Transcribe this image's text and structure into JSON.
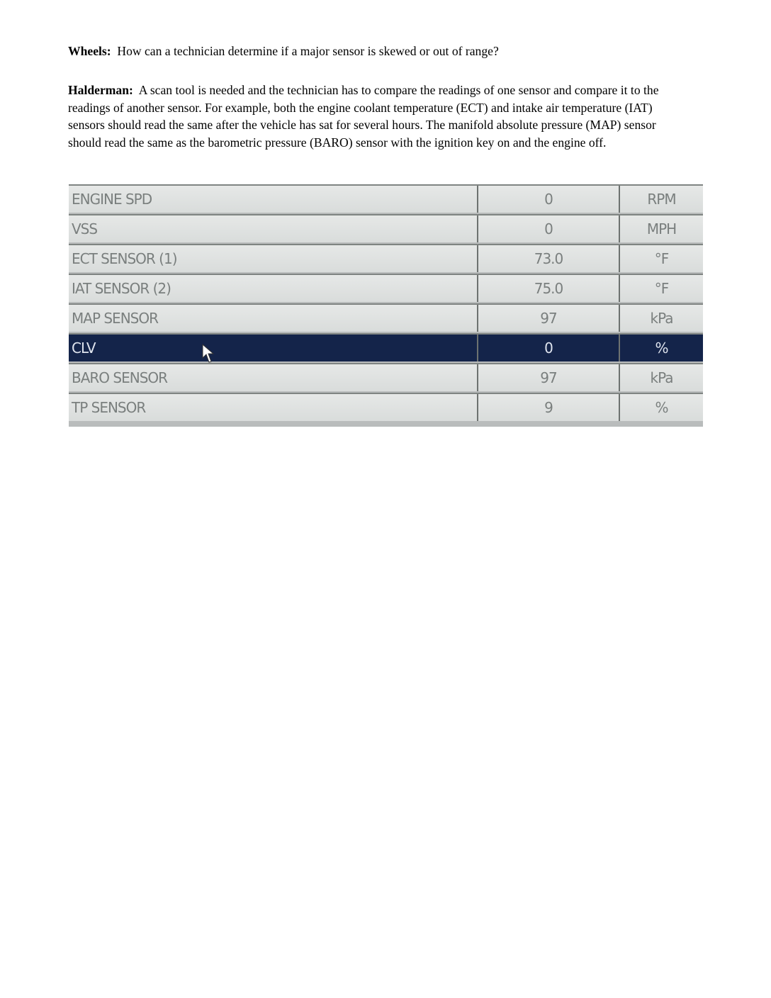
{
  "question": {
    "speaker": "Wheels:",
    "text": "How can a technician determine if a major sensor is skewed or out of range?"
  },
  "answer": {
    "speaker": "Halderman:",
    "text": "A scan tool is needed and the technician has to compare the readings of one sensor and compare it to the readings of another sensor.  For example, both the engine coolant temperature (ECT) and intake air temperature (IAT) sensors should read the same after the vehicle has sat for several hours. The manifold absolute pressure (MAP) sensor should read the same as the barometric pressure (BARO) sensor with the ignition key on and the engine off."
  },
  "scan_table": {
    "selected_row": "CLV",
    "rows": [
      {
        "name": "ENGINE SPD",
        "value": "0",
        "unit": "RPM"
      },
      {
        "name": "VSS",
        "value": "0",
        "unit": "MPH"
      },
      {
        "name": "ECT SENSOR (1)",
        "value": "73.0",
        "unit": "°F"
      },
      {
        "name": "IAT SENSOR (2)",
        "value": "75.0",
        "unit": "°F"
      },
      {
        "name": "MAP SENSOR",
        "value": "97",
        "unit": "kPa"
      },
      {
        "name": "CLV",
        "value": "0",
        "unit": "%"
      },
      {
        "name": "BARO SENSOR",
        "value": "97",
        "unit": "kPa"
      },
      {
        "name": "TP SENSOR",
        "value": "9",
        "unit": "%"
      }
    ]
  }
}
